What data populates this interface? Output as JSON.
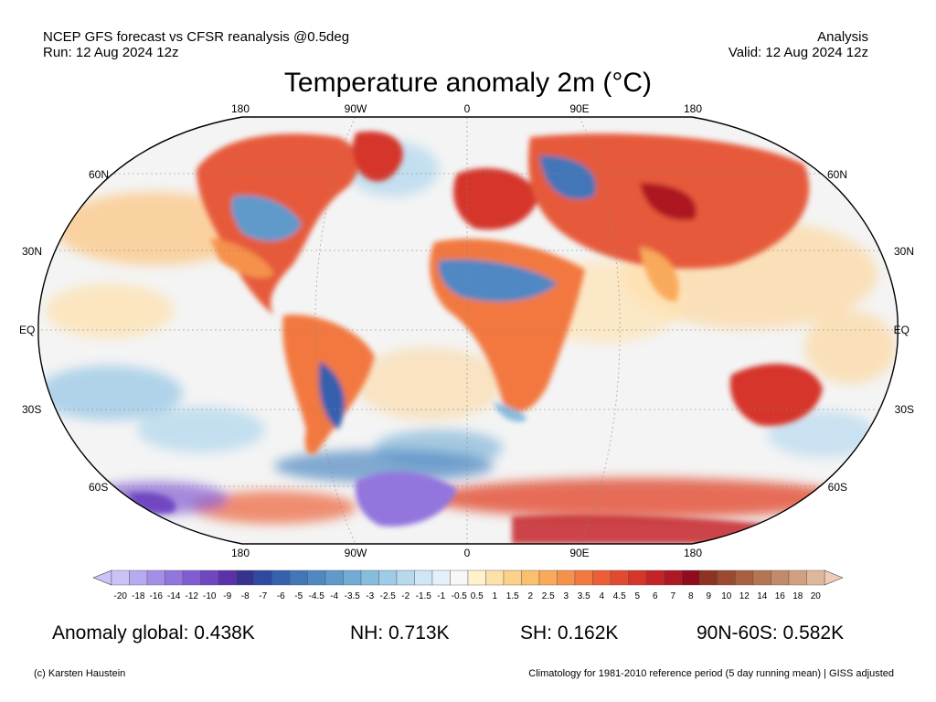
{
  "header": {
    "model_line": "NCEP GFS forecast vs CFSR reanalysis @0.5deg",
    "run_line": "Run: 12 Aug 2024 12z",
    "type_line": "Analysis",
    "valid_line": "Valid: 12 Aug 2024 12z"
  },
  "title": "Temperature anomaly 2m (°C)",
  "map": {
    "top_lon_labels": [
      "180",
      "90W",
      "0",
      "90E",
      "180"
    ],
    "bottom_lon_labels": [
      "180",
      "90W",
      "0",
      "90E",
      "180"
    ],
    "left_lat_labels": [
      "60N",
      "30N",
      "EQ",
      "30S",
      "60S"
    ],
    "right_lat_labels": [
      "60N",
      "30N",
      "EQ",
      "30S",
      "60S"
    ],
    "ocean_color": "#f4f4f4"
  },
  "colorbar": {
    "labels": [
      "-20",
      "-18",
      "-16",
      "-14",
      "-12",
      "-10",
      "-9",
      "-8",
      "-7",
      "-6",
      "-5",
      "-4.5",
      "-4",
      "-3.5",
      "-3",
      "-2.5",
      "-2",
      "-1.5",
      "-1",
      "-0.5",
      "0.5",
      "1",
      "1.5",
      "2",
      "2.5",
      "3",
      "3.5",
      "4",
      "4.5",
      "5",
      "6",
      "7",
      "8",
      "9",
      "10",
      "12",
      "14",
      "16",
      "18",
      "20"
    ],
    "colors": [
      "#c9c3f7",
      "#b6aaf0",
      "#a48fe8",
      "#9375de",
      "#825dd2",
      "#6f46c1",
      "#5a31a8",
      "#38328f",
      "#2e4aa0",
      "#3661ad",
      "#4376b8",
      "#4f88c2",
      "#5f9acb",
      "#72abd4",
      "#88bcdd",
      "#9fcbe6",
      "#b7d9ee",
      "#cee6f5",
      "#e4f1fa",
      "#f7f7f7",
      "#fff1cc",
      "#fde2a8",
      "#fcd188",
      "#fbbf6e",
      "#f9a95a",
      "#f6914b",
      "#f2783f",
      "#ec5f36",
      "#e24a30",
      "#d5352b",
      "#c42428",
      "#ae1824",
      "#8e0c1c",
      "#8e3322",
      "#9b4a30",
      "#a86040",
      "#b57553",
      "#c28a68",
      "#d0a17f",
      "#deb89a"
    ],
    "min_color": "#c9c3f7",
    "max_color": "#efcbb8"
  },
  "stats": {
    "global": "Anomaly global: 0.438K",
    "nh": "NH: 0.713K",
    "sh": "SH: 0.162K",
    "arctic": "90N-60S: 0.582K"
  },
  "footer": {
    "credit": "(c) Karsten Haustein",
    "climatology": "Climatology for 1981-2010 reference period (5 day running mean) | GISS adjusted"
  }
}
